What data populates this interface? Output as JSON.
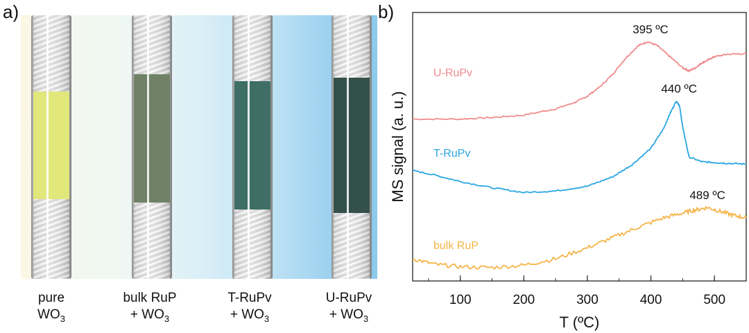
{
  "panels": {
    "a_label": "a)",
    "b_label": "b)"
  },
  "photos": [
    {
      "line1": "pure",
      "line2": "WO",
      "sub": "3",
      "fill_color": "#e1e77a"
    },
    {
      "line1": "bulk RuP",
      "line2": "+ WO",
      "sub": "3",
      "fill_color": "#6f8267"
    },
    {
      "line1": "T-RuPv",
      "line2": "+ WO",
      "sub": "3",
      "fill_color": "#3e6e66"
    },
    {
      "line1": "U-RuPv",
      "line2": "+ WO",
      "sub": "3",
      "fill_color": "#34504a"
    }
  ],
  "chart_data": {
    "type": "line",
    "xlabel": "T (ºC)",
    "ylabel": "MS signal (a. u.)",
    "xlim": [
      25,
      550
    ],
    "x_ticks": [
      100,
      200,
      300,
      400,
      500
    ],
    "x_minor_step": 50,
    "y_ticks_shown": false,
    "legend": "inline labels on each curve",
    "series": [
      {
        "name": "U-RuPv",
        "color": "#f08b8d",
        "peak_label": "395 ºC",
        "x": [
          25,
          100,
          150,
          200,
          250,
          280,
          300,
          320,
          340,
          360,
          380,
          395,
          410,
          430,
          450,
          460,
          470,
          480,
          490,
          500,
          520,
          550
        ],
        "y": [
          2.05,
          2.05,
          2.07,
          2.1,
          2.18,
          2.26,
          2.34,
          2.46,
          2.62,
          2.82,
          2.98,
          3.03,
          2.98,
          2.84,
          2.7,
          2.66,
          2.7,
          2.76,
          2.8,
          2.84,
          2.87,
          2.88
        ]
      },
      {
        "name": "T-RuPv",
        "color": "#2aa6e2",
        "peak_label": "440 ºC",
        "x": [
          25,
          60,
          100,
          150,
          200,
          250,
          300,
          340,
          370,
          400,
          420,
          430,
          440,
          445,
          450,
          460,
          480,
          500,
          520,
          550
        ],
        "y": [
          1.4,
          1.34,
          1.26,
          1.18,
          1.12,
          1.14,
          1.2,
          1.32,
          1.47,
          1.68,
          1.93,
          2.12,
          2.28,
          2.22,
          1.95,
          1.57,
          1.51,
          1.5,
          1.49,
          1.48
        ]
      },
      {
        "name": "bulk RuP",
        "color": "#f5b447",
        "peak_label": "489 ºC",
        "x": [
          25,
          60,
          100,
          150,
          200,
          250,
          300,
          340,
          380,
          420,
          450,
          470,
          489,
          510,
          530,
          550
        ],
        "y": [
          0.28,
          0.21,
          0.18,
          0.17,
          0.2,
          0.28,
          0.42,
          0.55,
          0.68,
          0.8,
          0.86,
          0.9,
          0.93,
          0.88,
          0.83,
          0.8
        ]
      }
    ],
    "ylim": [
      0,
      3.4
    ]
  }
}
